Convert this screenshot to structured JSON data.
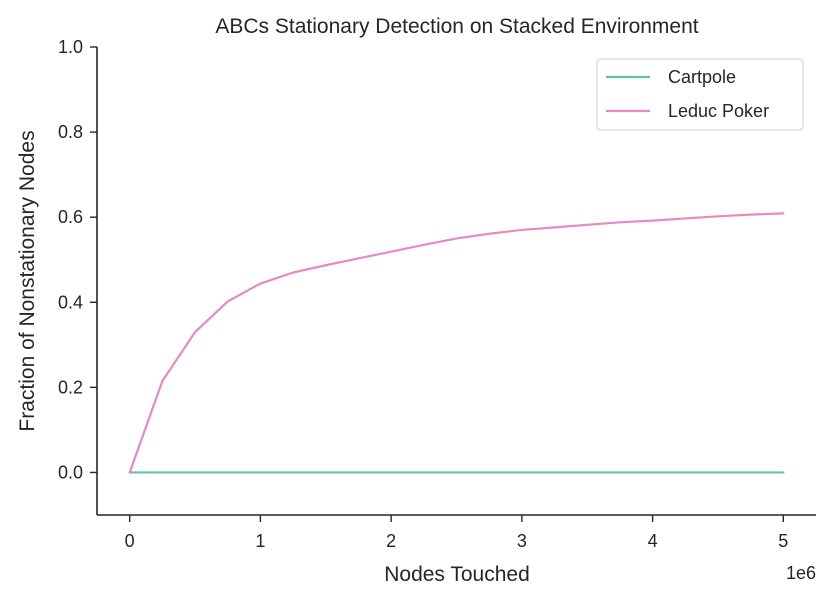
{
  "chart_data": {
    "type": "line",
    "title": "ABCs Stationary Detection on Stacked Environment",
    "xlabel": "Nodes Touched",
    "ylabel": "Fraction of Nonstationary Nodes",
    "x_offset_label": "1e6",
    "xlim": [
      -0.25,
      5.25
    ],
    "ylim": [
      -0.1,
      1.0
    ],
    "x_ticks": [
      0,
      1,
      2,
      3,
      4,
      5
    ],
    "x_tick_labels": [
      "0",
      "1",
      "2",
      "3",
      "4",
      "5"
    ],
    "y_ticks": [
      0.0,
      0.2,
      0.4,
      0.6,
      0.8,
      1.0
    ],
    "y_tick_labels": [
      "0.0",
      "0.2",
      "0.4",
      "0.6",
      "0.8",
      "1.0"
    ],
    "grid": false,
    "legend_position": "top-right",
    "series": [
      {
        "name": "Cartpole",
        "color": "#66c2a5",
        "x": [
          0,
          0.25,
          0.5,
          0.75,
          1.0,
          1.25,
          1.5,
          1.75,
          2.0,
          2.25,
          2.5,
          2.75,
          3.0,
          3.25,
          3.5,
          3.75,
          4.0,
          4.25,
          4.5,
          4.75,
          5.0
        ],
        "y": [
          0,
          0,
          0,
          0,
          0,
          0,
          0,
          0,
          0,
          0,
          0,
          0,
          0,
          0,
          0,
          0,
          0,
          0,
          0,
          0,
          0
        ]
      },
      {
        "name": "Leduc Poker",
        "color": "#e78ac3",
        "x": [
          0,
          0.25,
          0.5,
          0.75,
          1.0,
          1.25,
          1.5,
          1.75,
          2.0,
          2.25,
          2.5,
          2.75,
          3.0,
          3.25,
          3.5,
          3.75,
          4.0,
          4.25,
          4.5,
          4.75,
          5.0
        ],
        "y": [
          0,
          0.215,
          0.33,
          0.402,
          0.444,
          0.47,
          0.487,
          0.503,
          0.519,
          0.535,
          0.55,
          0.561,
          0.57,
          0.576,
          0.582,
          0.588,
          0.592,
          0.597,
          0.602,
          0.606,
          0.609
        ]
      }
    ]
  }
}
